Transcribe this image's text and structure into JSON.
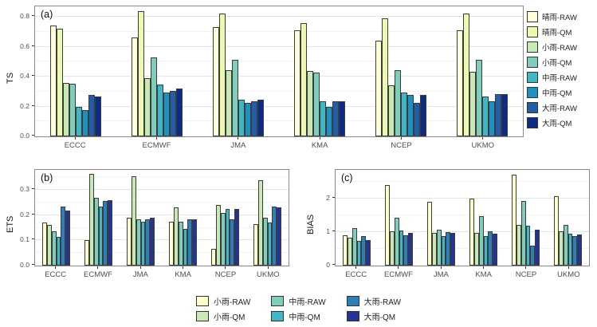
{
  "chart_data": [
    {
      "id": "a",
      "type": "bar",
      "panel_label": "(a)",
      "ylabel": "TS",
      "categories": [
        "ECCC",
        "ECMWF",
        "JMA",
        "KMA",
        "NCEP",
        "UKMO"
      ],
      "series": [
        {
          "name": "晴雨-RAW",
          "color": "#FFFFD9",
          "values": [
            0.74,
            0.66,
            0.73,
            0.71,
            0.64,
            0.71
          ]
        },
        {
          "name": "晴雨-QM",
          "color": "#EDF8B1",
          "values": [
            0.72,
            0.84,
            0.82,
            0.76,
            0.79,
            0.82
          ]
        },
        {
          "name": "小雨-RAW",
          "color": "#C7E9B4",
          "values": [
            0.36,
            0.39,
            0.445,
            0.44,
            0.34,
            0.435
          ]
        },
        {
          "name": "小雨-QM",
          "color": "#7FCDBB",
          "values": [
            0.35,
            0.53,
            0.515,
            0.425,
            0.445,
            0.515
          ]
        },
        {
          "name": "中雨-RAW",
          "color": "#41B6C4",
          "values": [
            0.2,
            0.345,
            0.245,
            0.235,
            0.295,
            0.265
          ]
        },
        {
          "name": "中雨-QM",
          "color": "#1D91C0",
          "values": [
            0.175,
            0.295,
            0.225,
            0.2,
            0.28,
            0.235
          ]
        },
        {
          "name": "大雨-RAW",
          "color": "#225EA8",
          "values": [
            0.28,
            0.305,
            0.235,
            0.235,
            0.225,
            0.285
          ]
        },
        {
          "name": "大雨-QM",
          "color": "#0C2C84",
          "values": [
            0.265,
            0.32,
            0.245,
            0.235,
            0.275,
            0.285
          ]
        }
      ],
      "ylim": [
        0,
        0.87
      ],
      "yticks": [
        {
          "v": 0,
          "label": "0.0"
        },
        {
          "v": 0.2,
          "label": "0.2"
        },
        {
          "v": 0.4,
          "label": "0.4"
        },
        {
          "v": 0.6,
          "label": "0.6"
        },
        {
          "v": 0.8,
          "label": "0.8"
        }
      ],
      "minor_gridlines": [
        0.1,
        0.3,
        0.5,
        0.7
      ],
      "grid": true,
      "legend_position": "right"
    },
    {
      "id": "b",
      "type": "bar",
      "panel_label": "(b)",
      "ylabel": "ETS",
      "categories": [
        "ECCC",
        "ECMWF",
        "JMA",
        "KMA",
        "NCEP",
        "UKMO"
      ],
      "series": [
        {
          "name": "小雨-RAW",
          "color": "#FFFFCC",
          "values": [
            0.17,
            0.1,
            0.19,
            0.175,
            0.065,
            0.165
          ]
        },
        {
          "name": "小雨-QM",
          "color": "#C7E9B4",
          "values": [
            0.16,
            0.365,
            0.355,
            0.23,
            0.24,
            0.34
          ]
        },
        {
          "name": "中雨-RAW",
          "color": "#7FCDBB",
          "values": [
            0.135,
            0.27,
            0.185,
            0.175,
            0.21,
            0.19
          ]
        },
        {
          "name": "中雨-QM",
          "color": "#41B6C4",
          "values": [
            0.115,
            0.235,
            0.175,
            0.145,
            0.225,
            0.17
          ]
        },
        {
          "name": "大雨-RAW",
          "color": "#2C7FB8",
          "values": [
            0.235,
            0.255,
            0.185,
            0.185,
            0.185,
            0.235
          ]
        },
        {
          "name": "大雨-QM",
          "color": "#253494",
          "values": [
            0.22,
            0.26,
            0.19,
            0.185,
            0.225,
            0.23
          ]
        }
      ],
      "ylim": [
        0,
        0.38
      ],
      "yticks": [
        {
          "v": 0,
          "label": "0.0"
        },
        {
          "v": 0.1,
          "label": "0.1"
        },
        {
          "v": 0.2,
          "label": "0.2"
        },
        {
          "v": 0.3,
          "label": "0.3"
        }
      ],
      "minor_gridlines": [
        0.05,
        0.15,
        0.25,
        0.35
      ],
      "grid": true,
      "legend_position": "bottom"
    },
    {
      "id": "c",
      "type": "bar",
      "panel_label": "(c)",
      "ylabel": "BIAS",
      "categories": [
        "ECCC",
        "ECMWF",
        "JMA",
        "KMA",
        "NCEP",
        "UKMO"
      ],
      "series": [
        {
          "name": "小雨-RAW",
          "color": "#FFFFCC",
          "values": [
            0.91,
            2.4,
            1.9,
            2.0,
            2.7,
            2.07
          ]
        },
        {
          "name": "小雨-QM",
          "color": "#C7E9B4",
          "values": [
            0.84,
            1.03,
            0.97,
            0.98,
            1.22,
            1.02
          ]
        },
        {
          "name": "中雨-RAW",
          "color": "#7FCDBB",
          "values": [
            1.11,
            1.43,
            1.08,
            1.47,
            1.92,
            1.21
          ]
        },
        {
          "name": "中雨-QM",
          "color": "#41B6C4",
          "values": [
            0.73,
            1.04,
            0.88,
            0.88,
            1.18,
            0.95
          ]
        },
        {
          "name": "大雨-RAW",
          "color": "#2C7FB8",
          "values": [
            0.88,
            0.9,
            1.0,
            1.01,
            0.6,
            0.88
          ]
        },
        {
          "name": "大雨-QM",
          "color": "#253494",
          "values": [
            0.76,
            0.97,
            0.97,
            0.94,
            1.08,
            0.92
          ]
        }
      ],
      "ylim": [
        0,
        2.85
      ],
      "yticks": [
        {
          "v": 0,
          "label": "0"
        },
        {
          "v": 1,
          "label": "1"
        },
        {
          "v": 2,
          "label": "2"
        }
      ],
      "minor_gridlines": [
        0.5,
        1.5,
        2.5
      ],
      "grid": true,
      "legend_position": "bottom"
    }
  ]
}
